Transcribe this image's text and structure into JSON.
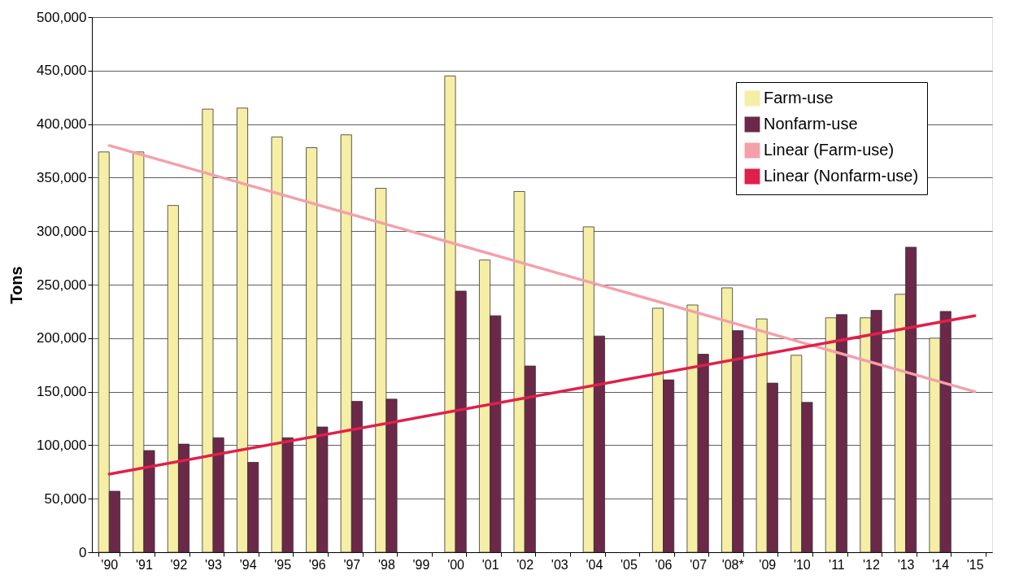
{
  "chart_data": {
    "type": "bar",
    "ylabel": "Tons",
    "categories": [
      "'90",
      "'91",
      "'92",
      "'93",
      "'94",
      "'95",
      "'96",
      "'97",
      "'98",
      "'99",
      "'00",
      "'01",
      "'02",
      "'03",
      "'04",
      "'05",
      "'06",
      "'07",
      "'08*",
      "'09",
      "'10",
      "'11",
      "'12",
      "'13",
      "'14",
      "'15"
    ],
    "series": [
      {
        "name": "Farm-use",
        "color": "#f6eea4",
        "values": [
          374000,
          374000,
          324000,
          414000,
          415000,
          388000,
          378000,
          390000,
          340000,
          null,
          445000,
          273000,
          337000,
          null,
          304000,
          null,
          228000,
          231000,
          247000,
          218000,
          184000,
          219000,
          219000,
          241000,
          200000,
          null
        ]
      },
      {
        "name": "Nonfarm-use",
        "color": "#6b2848",
        "values": [
          57000,
          95000,
          101000,
          107000,
          84000,
          107000,
          117000,
          141000,
          143000,
          null,
          244000,
          221000,
          174000,
          null,
          202000,
          null,
          161000,
          185000,
          207000,
          158000,
          140000,
          222000,
          226000,
          285000,
          225000,
          null
        ]
      },
      {
        "name": "Linear (Farm-use)",
        "type": "line",
        "color": "#f4a0aa",
        "x": [
          "'90",
          "'15"
        ],
        "values": [
          380000,
          150000
        ]
      },
      {
        "name": "Linear (Nonfarm-use)",
        "type": "line",
        "color": "#e0204a",
        "x": [
          "'90",
          "'15"
        ],
        "values": [
          73000,
          221000
        ]
      }
    ],
    "ylim": [
      0,
      500000
    ],
    "yticks": [
      0,
      {
        "value": 50000,
        "label": "50,000"
      },
      {
        "value": 100000,
        "label": "100,000"
      },
      {
        "value": 150000,
        "label": "150,000"
      },
      {
        "value": 200000,
        "label": "200,000"
      },
      {
        "value": 250000,
        "label": "250,000"
      },
      {
        "value": 300000,
        "label": "300,000"
      },
      {
        "value": 350000,
        "label": "350,000"
      },
      {
        "value": 400000,
        "label": "400,000"
      },
      {
        "value": 450000,
        "label": "450,000"
      },
      {
        "value": 500000,
        "label": "500,000"
      }
    ],
    "grid": "y",
    "legend": "top right"
  }
}
